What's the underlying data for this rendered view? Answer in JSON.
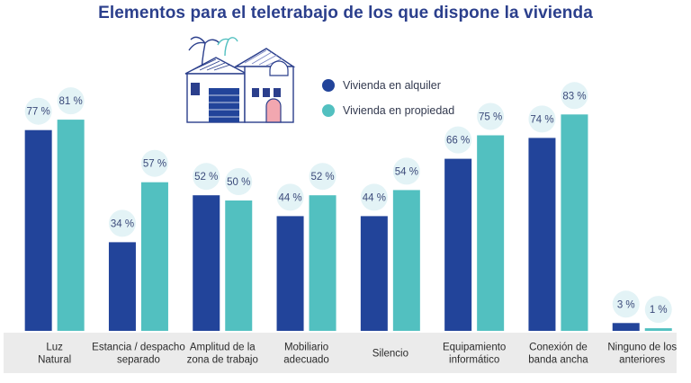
{
  "chart_data": {
    "type": "bar",
    "title": "Elementos para el teletrabajo de los que dispone la vivienda",
    "xlabel": "",
    "ylabel": "",
    "ylim": [
      0,
      100
    ],
    "value_suffix": " %",
    "categories": [
      [
        "Luz",
        "Natural"
      ],
      [
        "Estancia / despacho",
        "separado"
      ],
      [
        "Amplitud de la",
        "zona de trabajo"
      ],
      [
        "Mobiliario",
        "adecuado"
      ],
      [
        "Silencio"
      ],
      [
        "Equipamiento",
        "informático"
      ],
      [
        "Conexión de",
        "banda ancha"
      ],
      [
        "Ninguno de los",
        "anteriores"
      ]
    ],
    "series": [
      {
        "name": "Vivienda en alquiler",
        "color": "#22449a",
        "values": [
          77,
          34,
          52,
          44,
          44,
          66,
          74,
          3
        ]
      },
      {
        "name": "Vivienda en propiedad",
        "color": "#52c0c0",
        "values": [
          81,
          57,
          50,
          52,
          54,
          75,
          83,
          1
        ]
      }
    ],
    "label_bubble_color": "#e3f3f6",
    "label_text_color": "#3b4a7a",
    "category_band_color": "#ebebeb",
    "category_text_color": "#2b2b2b"
  }
}
